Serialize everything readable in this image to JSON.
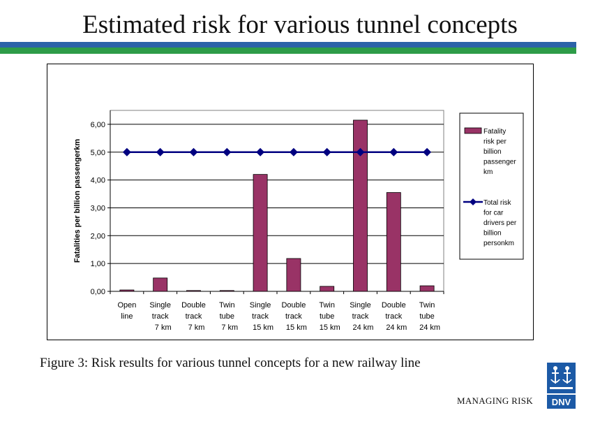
{
  "title": "Estimated risk for various tunnel concepts",
  "caption": "Figure 3: Risk results for various tunnel concepts for a new railway line",
  "footer": "MANAGING RISK",
  "logo_text": "DNV",
  "colors": {
    "bar": "#993366",
    "line": "#000080",
    "band_blue": "#2c63a8",
    "band_green": "#2e9c48",
    "logo_blue": "#1c5aa6"
  },
  "chart_data": {
    "type": "bar",
    "ylabel": "Fatalities per billion passengerkm",
    "xlabel": "",
    "ylim": [
      0,
      6.5
    ],
    "yticks": [
      "0,00",
      "1,00",
      "2,00",
      "3,00",
      "4,00",
      "5,00",
      "6,00"
    ],
    "ytick_values": [
      0,
      1,
      2,
      3,
      4,
      5,
      6
    ],
    "grid": true,
    "legend_position": "right",
    "categories": [
      [
        "Open",
        "line"
      ],
      [
        "Single",
        "track",
        "7 km"
      ],
      [
        "Double",
        "track",
        "7 km"
      ],
      [
        "Twin",
        "tube",
        "7 km"
      ],
      [
        "Single",
        "track",
        "15 km"
      ],
      [
        "Double",
        "track",
        "15 km"
      ],
      [
        "Twin",
        "tube",
        "15 km"
      ],
      [
        "Single",
        "track",
        "24 km"
      ],
      [
        "Double",
        "track",
        "24 km"
      ],
      [
        "Twin",
        "tube",
        "24 km"
      ]
    ],
    "series": [
      {
        "name": [
          "Fatality",
          "risk per",
          "billion",
          "passenger",
          "km"
        ],
        "type": "bar",
        "values": [
          0.05,
          0.48,
          0.03,
          0.03,
          4.2,
          1.18,
          0.18,
          6.15,
          3.55,
          0.2
        ]
      },
      {
        "name": [
          "Total risk",
          "for car",
          "drivers per",
          "billion",
          "personkm"
        ],
        "type": "line",
        "values": [
          5,
          5,
          5,
          5,
          5,
          5,
          5,
          5,
          5,
          5
        ]
      }
    ]
  }
}
